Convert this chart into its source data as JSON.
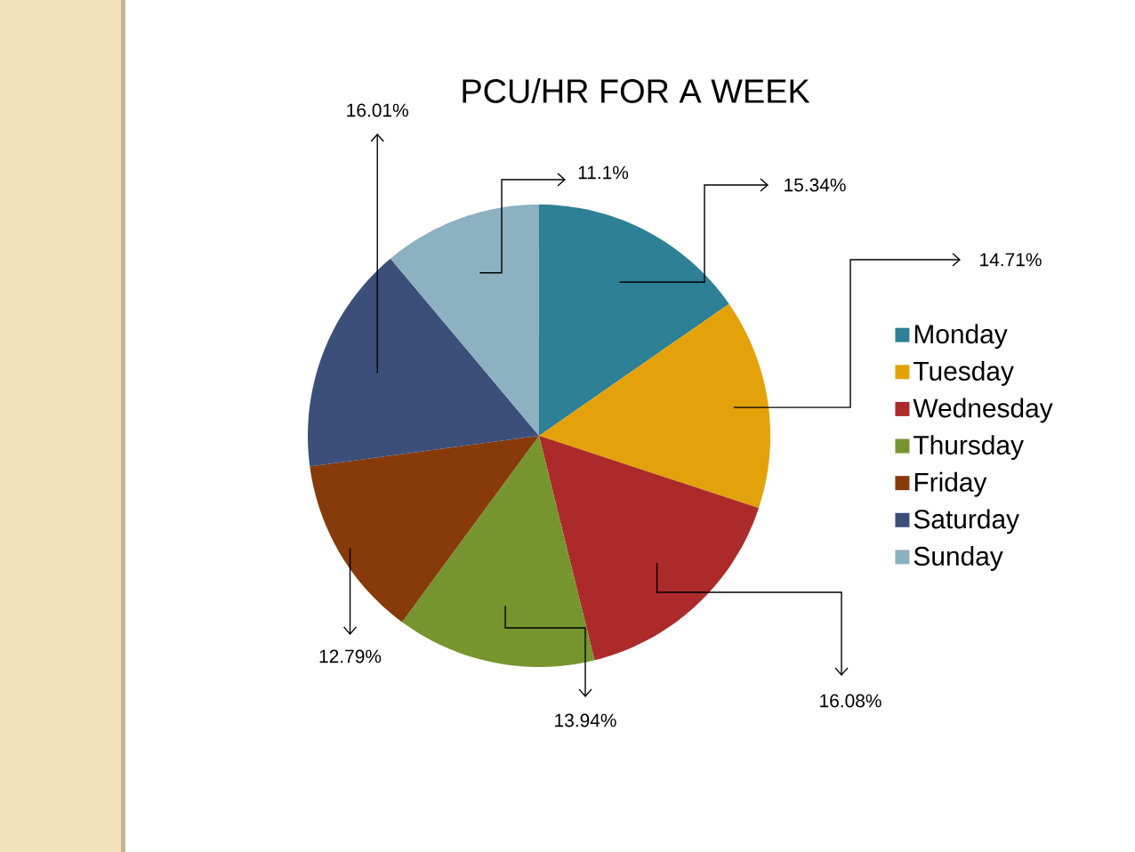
{
  "chart_data": {
    "type": "pie",
    "title": "PCU/HR FOR A WEEK",
    "categories": [
      "Monday",
      "Tuesday",
      "Wednesday",
      "Thursday",
      "Friday",
      "Saturday",
      "Sunday"
    ],
    "values": [
      15.34,
      14.71,
      16.08,
      13.94,
      12.79,
      16.01,
      11.1
    ],
    "colors": [
      "#2d8096",
      "#e3a20a",
      "#ad2a2a",
      "#76952e",
      "#873a0a",
      "#3b4f7a",
      "#8cb1c0"
    ],
    "value_labels": [
      "15.34%",
      "14.71%",
      "16.08%",
      "13.94%",
      "12.79%",
      "16.01%",
      "11.1%"
    ],
    "legend": "right"
  }
}
